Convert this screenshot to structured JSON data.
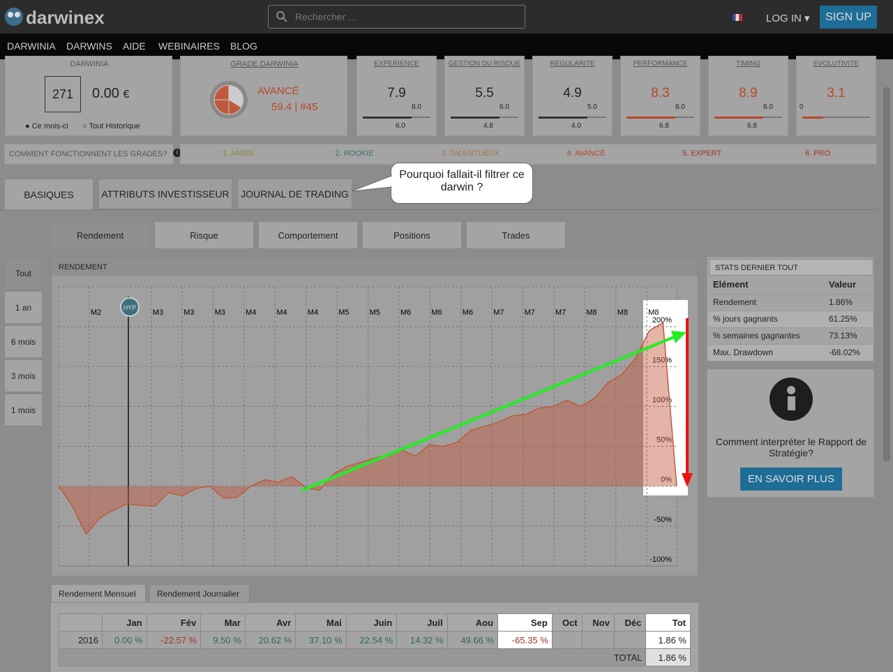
{
  "header": {
    "logo": "darwinex",
    "search_placeholder": "Rechercher ...",
    "login": "LOG IN",
    "signup": "SIGN UP"
  },
  "nav": [
    "DARWINIA",
    "DARWINS",
    "AIDE",
    "WEBINAIRES",
    "BLOG"
  ],
  "darwinia": {
    "label": "DARWINIA",
    "rank": "271",
    "value": "0.00",
    "currency": "€",
    "options": [
      "Ce mois-ci",
      "Tout Historique"
    ]
  },
  "grade": {
    "label": "GRADE DARWINIA",
    "level": "AVANCÉ",
    "score": "59.4 | #45"
  },
  "metrics": [
    {
      "label": "EXPERIENCE",
      "value": "7.9",
      "top": "8.0",
      "bottom": "6.0"
    },
    {
      "label": "GESTION DU RISQUE",
      "value": "5.5",
      "top": "6.0",
      "bottom": "4.8"
    },
    {
      "label": "REGULARITE",
      "value": "4.9",
      "top": "5.0",
      "bottom": "4.0"
    },
    {
      "label": "PERFORMANCE",
      "value": "8.3",
      "top": "8.0",
      "bottom": "6.8"
    },
    {
      "label": "TIMING",
      "value": "8.9",
      "top": "8.0",
      "bottom": "6.8"
    },
    {
      "label": "EVOLUTIVITE",
      "value": "3.1",
      "top": "0"
    }
  ],
  "grades": {
    "question": "COMMENT FONCTIONNENT LES GRADES?",
    "steps": [
      "1. AMIBE",
      "2. ROOKIE",
      "3. TALENTUEUX",
      "4. AVANCÉ",
      "5. EXPERT",
      "6. PRO"
    ]
  },
  "tabs": [
    "BASIQUES",
    "ATTRIBUTS INVESTISSEUR",
    "JOURNAL DE TRADING"
  ],
  "callout": "Pourquoi fallait-il filtrer ce darwin ?",
  "subtabs": [
    "Rendement",
    "Risque",
    "Comportement",
    "Positions",
    "Trades"
  ],
  "periods": [
    "Tout",
    "1 an",
    "6 mois",
    "3 mois",
    "1 mois"
  ],
  "chart_data": {
    "type": "area",
    "title": "RENDEMENT",
    "marker": "HYP",
    "x_labels": [
      "M2",
      "M3",
      "M3",
      "M3",
      "M4",
      "M4",
      "M4",
      "M5",
      "M5",
      "M6",
      "M6",
      "M6",
      "M7",
      "M7",
      "M7",
      "M8",
      "M8",
      "M8"
    ],
    "series": [
      {
        "color": "#c0593c",
        "values": [
          0,
          -25,
          -60,
          -40,
          -30,
          -22,
          -24,
          -25,
          -8,
          -12,
          -3,
          0,
          -15,
          -14,
          0,
          8,
          5,
          12,
          -2,
          -5,
          15,
          25,
          30,
          35,
          40,
          45,
          38,
          52,
          50,
          55,
          70,
          75,
          80,
          88,
          90,
          98,
          100,
          108,
          100,
          110,
          130,
          140,
          160,
          195,
          205,
          0
        ]
      }
    ],
    "ylim": [
      -100,
      250
    ],
    "yticks": [
      {
        "value": -100,
        "label": "-100%"
      },
      {
        "value": -50,
        "label": "-50%"
      },
      {
        "value": 0,
        "label": "0%"
      },
      {
        "value": 50,
        "label": "50%"
      },
      {
        "value": 100,
        "label": "100%"
      },
      {
        "value": 150,
        "label": "150%"
      },
      {
        "value": 200,
        "label": "200%"
      }
    ],
    "grid": true
  },
  "stats": {
    "title": "STATS DERNIER TOUT",
    "headers": [
      "Elément",
      "Valeur"
    ],
    "rows": [
      [
        "Rendement",
        "1.86%"
      ],
      [
        "% jours gagnants",
        "61.25%"
      ],
      [
        "% semaines gagnantes",
        "73.13%"
      ],
      [
        "Max. Drawdown",
        "-68.02%"
      ]
    ]
  },
  "info": {
    "text": "Comment interpréter le Rapport de Stratégie?",
    "button": "EN SAVOIR PLUS"
  },
  "monthly": {
    "tabs": [
      "Rendement Mensuel",
      "Rendement Journalier"
    ],
    "headers": [
      "Jan",
      "Fév",
      "Mar",
      "Avr",
      "Mai",
      "Juin",
      "Juil",
      "Aou",
      "Sep",
      "Oct",
      "Nov",
      "Déc",
      "Tot"
    ],
    "year": "2016",
    "values": [
      "0.00 %",
      "-22.57 %",
      "9.50 %",
      "20.62 %",
      "37.10 %",
      "22.54 %",
      "14.32 %",
      "49.66 %",
      "-65.35 %",
      "",
      "",
      "",
      "1.86 %"
    ],
    "total_label": "TOTAL",
    "total": "1.86 %"
  }
}
